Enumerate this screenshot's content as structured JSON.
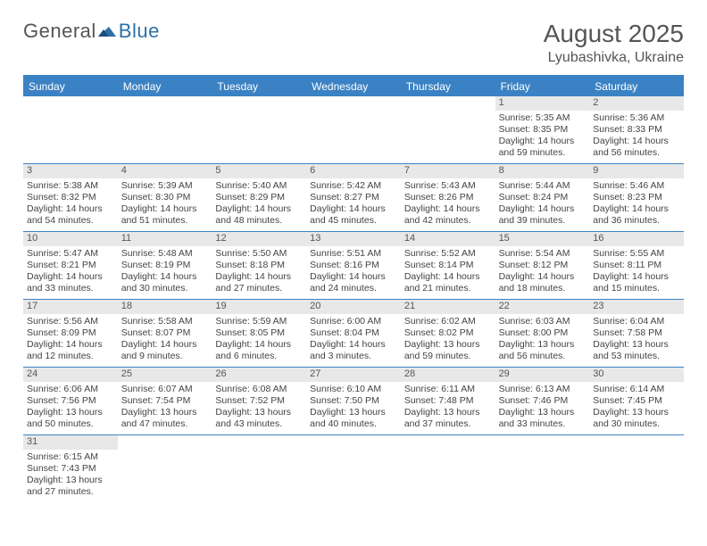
{
  "brand": {
    "name1": "General",
    "name2": "Blue"
  },
  "title": "August 2025",
  "location": "Lyubashivka, Ukraine",
  "colors": {
    "header_bg": "#3b82c4",
    "header_text": "#ffffff",
    "daynum_bg": "#e8e8e8",
    "text": "#444444",
    "border": "#3b82c4"
  },
  "weekdays": [
    "Sunday",
    "Monday",
    "Tuesday",
    "Wednesday",
    "Thursday",
    "Friday",
    "Saturday"
  ],
  "weeks": [
    [
      null,
      null,
      null,
      null,
      null,
      {
        "n": "1",
        "sr": "Sunrise: 5:35 AM",
        "ss": "Sunset: 8:35 PM",
        "d1": "Daylight: 14 hours",
        "d2": "and 59 minutes."
      },
      {
        "n": "2",
        "sr": "Sunrise: 5:36 AM",
        "ss": "Sunset: 8:33 PM",
        "d1": "Daylight: 14 hours",
        "d2": "and 56 minutes."
      }
    ],
    [
      {
        "n": "3",
        "sr": "Sunrise: 5:38 AM",
        "ss": "Sunset: 8:32 PM",
        "d1": "Daylight: 14 hours",
        "d2": "and 54 minutes."
      },
      {
        "n": "4",
        "sr": "Sunrise: 5:39 AM",
        "ss": "Sunset: 8:30 PM",
        "d1": "Daylight: 14 hours",
        "d2": "and 51 minutes."
      },
      {
        "n": "5",
        "sr": "Sunrise: 5:40 AM",
        "ss": "Sunset: 8:29 PM",
        "d1": "Daylight: 14 hours",
        "d2": "and 48 minutes."
      },
      {
        "n": "6",
        "sr": "Sunrise: 5:42 AM",
        "ss": "Sunset: 8:27 PM",
        "d1": "Daylight: 14 hours",
        "d2": "and 45 minutes."
      },
      {
        "n": "7",
        "sr": "Sunrise: 5:43 AM",
        "ss": "Sunset: 8:26 PM",
        "d1": "Daylight: 14 hours",
        "d2": "and 42 minutes."
      },
      {
        "n": "8",
        "sr": "Sunrise: 5:44 AM",
        "ss": "Sunset: 8:24 PM",
        "d1": "Daylight: 14 hours",
        "d2": "and 39 minutes."
      },
      {
        "n": "9",
        "sr": "Sunrise: 5:46 AM",
        "ss": "Sunset: 8:23 PM",
        "d1": "Daylight: 14 hours",
        "d2": "and 36 minutes."
      }
    ],
    [
      {
        "n": "10",
        "sr": "Sunrise: 5:47 AM",
        "ss": "Sunset: 8:21 PM",
        "d1": "Daylight: 14 hours",
        "d2": "and 33 minutes."
      },
      {
        "n": "11",
        "sr": "Sunrise: 5:48 AM",
        "ss": "Sunset: 8:19 PM",
        "d1": "Daylight: 14 hours",
        "d2": "and 30 minutes."
      },
      {
        "n": "12",
        "sr": "Sunrise: 5:50 AM",
        "ss": "Sunset: 8:18 PM",
        "d1": "Daylight: 14 hours",
        "d2": "and 27 minutes."
      },
      {
        "n": "13",
        "sr": "Sunrise: 5:51 AM",
        "ss": "Sunset: 8:16 PM",
        "d1": "Daylight: 14 hours",
        "d2": "and 24 minutes."
      },
      {
        "n": "14",
        "sr": "Sunrise: 5:52 AM",
        "ss": "Sunset: 8:14 PM",
        "d1": "Daylight: 14 hours",
        "d2": "and 21 minutes."
      },
      {
        "n": "15",
        "sr": "Sunrise: 5:54 AM",
        "ss": "Sunset: 8:12 PM",
        "d1": "Daylight: 14 hours",
        "d2": "and 18 minutes."
      },
      {
        "n": "16",
        "sr": "Sunrise: 5:55 AM",
        "ss": "Sunset: 8:11 PM",
        "d1": "Daylight: 14 hours",
        "d2": "and 15 minutes."
      }
    ],
    [
      {
        "n": "17",
        "sr": "Sunrise: 5:56 AM",
        "ss": "Sunset: 8:09 PM",
        "d1": "Daylight: 14 hours",
        "d2": "and 12 minutes."
      },
      {
        "n": "18",
        "sr": "Sunrise: 5:58 AM",
        "ss": "Sunset: 8:07 PM",
        "d1": "Daylight: 14 hours",
        "d2": "and 9 minutes."
      },
      {
        "n": "19",
        "sr": "Sunrise: 5:59 AM",
        "ss": "Sunset: 8:05 PM",
        "d1": "Daylight: 14 hours",
        "d2": "and 6 minutes."
      },
      {
        "n": "20",
        "sr": "Sunrise: 6:00 AM",
        "ss": "Sunset: 8:04 PM",
        "d1": "Daylight: 14 hours",
        "d2": "and 3 minutes."
      },
      {
        "n": "21",
        "sr": "Sunrise: 6:02 AM",
        "ss": "Sunset: 8:02 PM",
        "d1": "Daylight: 13 hours",
        "d2": "and 59 minutes."
      },
      {
        "n": "22",
        "sr": "Sunrise: 6:03 AM",
        "ss": "Sunset: 8:00 PM",
        "d1": "Daylight: 13 hours",
        "d2": "and 56 minutes."
      },
      {
        "n": "23",
        "sr": "Sunrise: 6:04 AM",
        "ss": "Sunset: 7:58 PM",
        "d1": "Daylight: 13 hours",
        "d2": "and 53 minutes."
      }
    ],
    [
      {
        "n": "24",
        "sr": "Sunrise: 6:06 AM",
        "ss": "Sunset: 7:56 PM",
        "d1": "Daylight: 13 hours",
        "d2": "and 50 minutes."
      },
      {
        "n": "25",
        "sr": "Sunrise: 6:07 AM",
        "ss": "Sunset: 7:54 PM",
        "d1": "Daylight: 13 hours",
        "d2": "and 47 minutes."
      },
      {
        "n": "26",
        "sr": "Sunrise: 6:08 AM",
        "ss": "Sunset: 7:52 PM",
        "d1": "Daylight: 13 hours",
        "d2": "and 43 minutes."
      },
      {
        "n": "27",
        "sr": "Sunrise: 6:10 AM",
        "ss": "Sunset: 7:50 PM",
        "d1": "Daylight: 13 hours",
        "d2": "and 40 minutes."
      },
      {
        "n": "28",
        "sr": "Sunrise: 6:11 AM",
        "ss": "Sunset: 7:48 PM",
        "d1": "Daylight: 13 hours",
        "d2": "and 37 minutes."
      },
      {
        "n": "29",
        "sr": "Sunrise: 6:13 AM",
        "ss": "Sunset: 7:46 PM",
        "d1": "Daylight: 13 hours",
        "d2": "and 33 minutes."
      },
      {
        "n": "30",
        "sr": "Sunrise: 6:14 AM",
        "ss": "Sunset: 7:45 PM",
        "d1": "Daylight: 13 hours",
        "d2": "and 30 minutes."
      }
    ],
    [
      {
        "n": "31",
        "sr": "Sunrise: 6:15 AM",
        "ss": "Sunset: 7:43 PM",
        "d1": "Daylight: 13 hours",
        "d2": "and 27 minutes."
      },
      null,
      null,
      null,
      null,
      null,
      null
    ]
  ]
}
